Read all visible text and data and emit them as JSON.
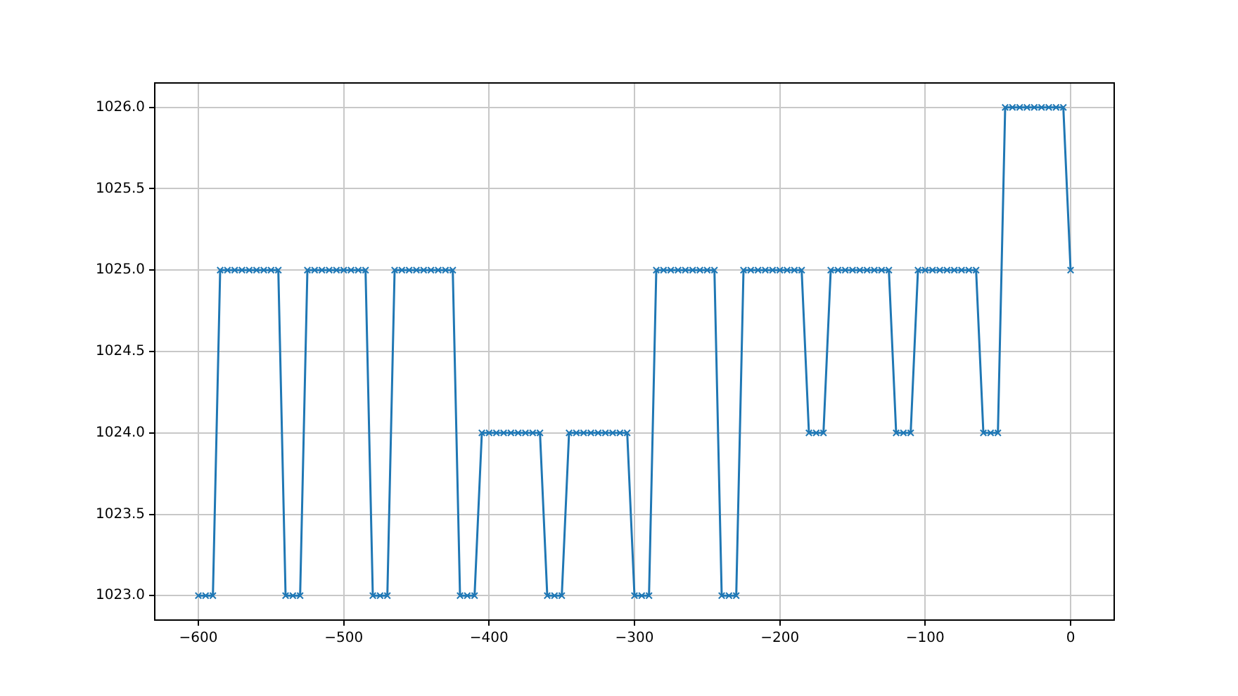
{
  "chart_data": {
    "type": "line",
    "marker": "cross",
    "line_style": "solid",
    "grid": true,
    "legend": false,
    "x": [
      -600,
      -595,
      -590,
      -585,
      -580,
      -575,
      -570,
      -565,
      -560,
      -555,
      -550,
      -545,
      -540,
      -535,
      -530,
      -525,
      -520,
      -515,
      -510,
      -505,
      -500,
      -495,
      -490,
      -485,
      -480,
      -475,
      -470,
      -465,
      -460,
      -455,
      -450,
      -445,
      -440,
      -435,
      -430,
      -425,
      -420,
      -415,
      -410,
      -405,
      -400,
      -395,
      -390,
      -385,
      -380,
      -375,
      -370,
      -365,
      -360,
      -355,
      -350,
      -345,
      -340,
      -335,
      -330,
      -325,
      -320,
      -315,
      -310,
      -305,
      -300,
      -295,
      -290,
      -285,
      -280,
      -275,
      -270,
      -265,
      -260,
      -255,
      -250,
      -245,
      -240,
      -235,
      -230,
      -225,
      -220,
      -215,
      -210,
      -205,
      -200,
      -195,
      -190,
      -185,
      -180,
      -175,
      -170,
      -165,
      -160,
      -155,
      -150,
      -145,
      -140,
      -135,
      -130,
      -125,
      -120,
      -115,
      -110,
      -105,
      -100,
      -95,
      -90,
      -85,
      -80,
      -75,
      -70,
      -65,
      -60,
      -55,
      -50,
      -45,
      -40,
      -35,
      -30,
      -25,
      -20,
      -15,
      -10,
      -5,
      0
    ],
    "series": [
      {
        "color": "#1f77b4",
        "values": [
          1023,
          1023,
          1023,
          1025,
          1025,
          1025,
          1025,
          1025,
          1025,
          1025,
          1025,
          1025,
          1023,
          1023,
          1023,
          1025,
          1025,
          1025,
          1025,
          1025,
          1025,
          1025,
          1025,
          1025,
          1023,
          1023,
          1023,
          1025,
          1025,
          1025,
          1025,
          1025,
          1025,
          1025,
          1025,
          1025,
          1023,
          1023,
          1023,
          1024,
          1024,
          1024,
          1024,
          1024,
          1024,
          1024,
          1024,
          1024,
          1023,
          1023,
          1023,
          1024,
          1024,
          1024,
          1024,
          1024,
          1024,
          1024,
          1024,
          1024,
          1023,
          1023,
          1023,
          1025,
          1025,
          1025,
          1025,
          1025,
          1025,
          1025,
          1025,
          1025,
          1023,
          1023,
          1023,
          1025,
          1025,
          1025,
          1025,
          1025,
          1025,
          1025,
          1025,
          1025,
          1024,
          1024,
          1024,
          1025,
          1025,
          1025,
          1025,
          1025,
          1025,
          1025,
          1025,
          1025,
          1024,
          1024,
          1024,
          1025,
          1025,
          1025,
          1025,
          1025,
          1025,
          1025,
          1025,
          1025,
          1024,
          1024,
          1024,
          1026,
          1026,
          1026,
          1026,
          1026,
          1026,
          1026,
          1026,
          1026,
          1025
        ]
      }
    ],
    "xlim": [
      -630,
      30
    ],
    "ylim": [
      1022.85,
      1026.15
    ],
    "xticks": [
      {
        "value": -600,
        "label": "−600"
      },
      {
        "value": -500,
        "label": "−500"
      },
      {
        "value": -400,
        "label": "−400"
      },
      {
        "value": -300,
        "label": "−300"
      },
      {
        "value": -200,
        "label": "−200"
      },
      {
        "value": -100,
        "label": "−100"
      },
      0
    ],
    "yticks": [
      {
        "value": 1023,
        "label": "1023.0"
      },
      1023.5,
      {
        "value": 1024,
        "label": "1024.0"
      },
      1024.5,
      {
        "value": 1025,
        "label": "1025.0"
      },
      1025.5,
      {
        "value": 1026,
        "label": "1026.0"
      }
    ]
  }
}
